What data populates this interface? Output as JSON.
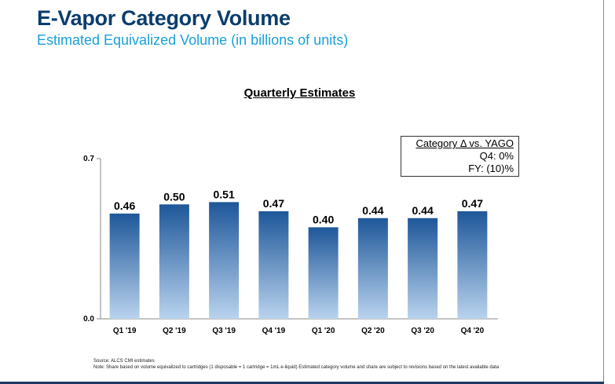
{
  "header": {
    "title": "E-Vapor Category Volume",
    "subtitle": "Estimated Equivalized Volume (in billions of units)"
  },
  "legend_box": {
    "title": "Category Δ vs. YAGO",
    "q4": "Q4:  0%",
    "fy": "FY: (10)%"
  },
  "footnote": {
    "source": "Source: ALCS CMI estimates",
    "note": "Note: Share based on volume equivalized to cartridges (1 disposable = 1 cartridge = 1mL e-liquid) Estimated category volume and share are subject to revisions based on the latest available data"
  },
  "colors": {
    "bar_top": "#1e5799",
    "bar_bottom": "#b9d3ee",
    "title": "#0b3d6e",
    "subtitle": "#1aa0d8"
  },
  "chart_data": {
    "type": "bar",
    "title": "Quarterly Estimates",
    "categories": [
      "Q1 '19",
      "Q2 '19",
      "Q3 '19",
      "Q4 '19",
      "Q1 '20",
      "Q2 '20",
      "Q3 '20",
      "Q4 '20"
    ],
    "values": [
      0.46,
      0.5,
      0.51,
      0.47,
      0.4,
      0.44,
      0.44,
      0.47
    ],
    "value_labels": [
      "0.46",
      "0.50",
      "0.51",
      "0.47",
      "0.40",
      "0.44",
      "0.44",
      "0.47"
    ],
    "ylim": [
      0.0,
      0.7
    ],
    "yticks": [
      "0.0",
      "0.7"
    ],
    "xlabel": "",
    "ylabel": ""
  }
}
